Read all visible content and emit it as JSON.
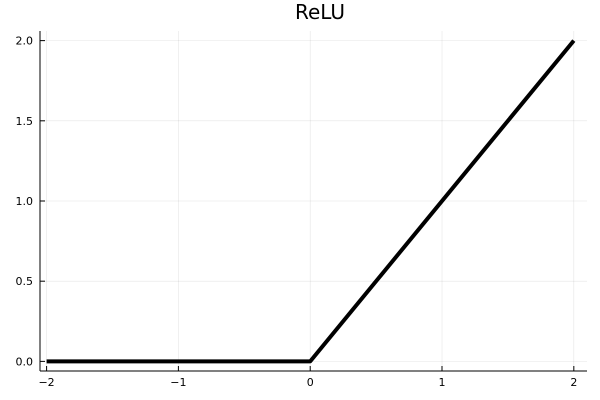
{
  "chart_data": {
    "type": "line",
    "title": "ReLU",
    "xlabel": "",
    "ylabel": "",
    "xlim": [
      -2.05,
      2.1
    ],
    "ylim": [
      -0.06,
      2.06
    ],
    "xticks": [
      -2,
      -1,
      0,
      1,
      2
    ],
    "xtick_labels": [
      "−2",
      "−1",
      "0",
      "1",
      "2"
    ],
    "yticks": [
      0.0,
      0.5,
      1.0,
      1.5,
      2.0
    ],
    "ytick_labels": [
      "0.0",
      "0.5",
      "1.0",
      "1.5",
      "2.0"
    ],
    "grid": true,
    "legend": "none",
    "series": [
      {
        "color": "#000000",
        "x": [
          -2,
          0,
          2
        ],
        "y": [
          0,
          0,
          2
        ]
      }
    ]
  }
}
